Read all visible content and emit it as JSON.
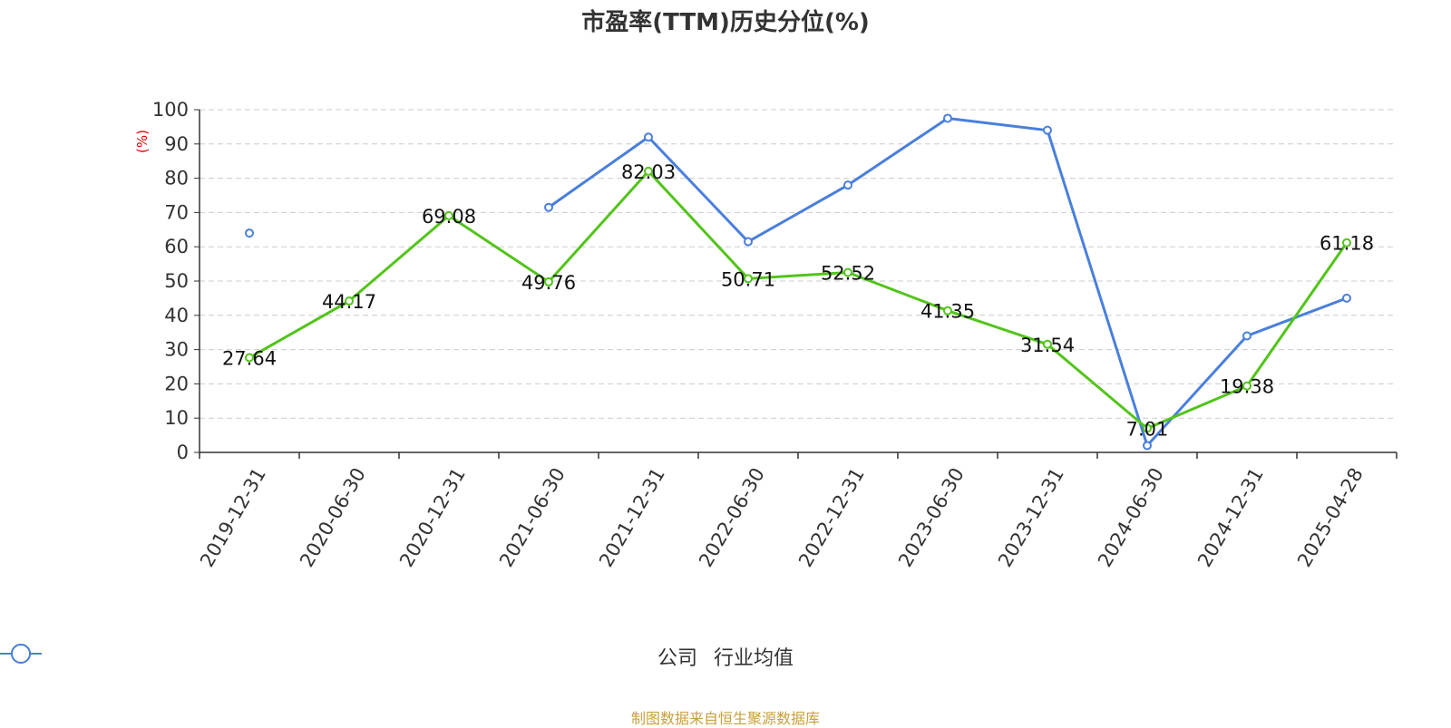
{
  "chart_data": {
    "type": "line",
    "title": "市盈率(TTM)历史分位(%)",
    "ylabel": "(%)",
    "ylim": [
      0,
      100
    ],
    "yticks": [
      0,
      10,
      20,
      30,
      40,
      50,
      60,
      70,
      80,
      90,
      100
    ],
    "categories": [
      "2019-12-31",
      "2020-06-30",
      "2020-12-31",
      "2021-06-30",
      "2021-12-31",
      "2022-06-30",
      "2022-12-31",
      "2023-06-30",
      "2023-12-31",
      "2024-06-30",
      "2024-12-31",
      "2025-04-28"
    ],
    "grid": true,
    "legend_position": "bottom",
    "series": [
      {
        "name": "公司",
        "color": "#52c41a",
        "values": [
          27.64,
          44.17,
          69.08,
          49.76,
          82.03,
          50.71,
          52.52,
          41.35,
          31.54,
          7.01,
          19.38,
          61.18
        ],
        "labels": [
          "27.64",
          "44.17",
          "69.08",
          "49.76",
          "82.03",
          "50.71",
          "52.52",
          "41.35",
          "31.54",
          "7.01",
          "19.38",
          "61.18"
        ]
      },
      {
        "name": "行业均值",
        "color": "#4a7fdc",
        "values": [
          64,
          null,
          null,
          71.5,
          92,
          61.5,
          78,
          97.5,
          94,
          2,
          34,
          45
        ]
      }
    ]
  },
  "footer": {
    "source": "制图数据来自恒生聚源数据库"
  }
}
